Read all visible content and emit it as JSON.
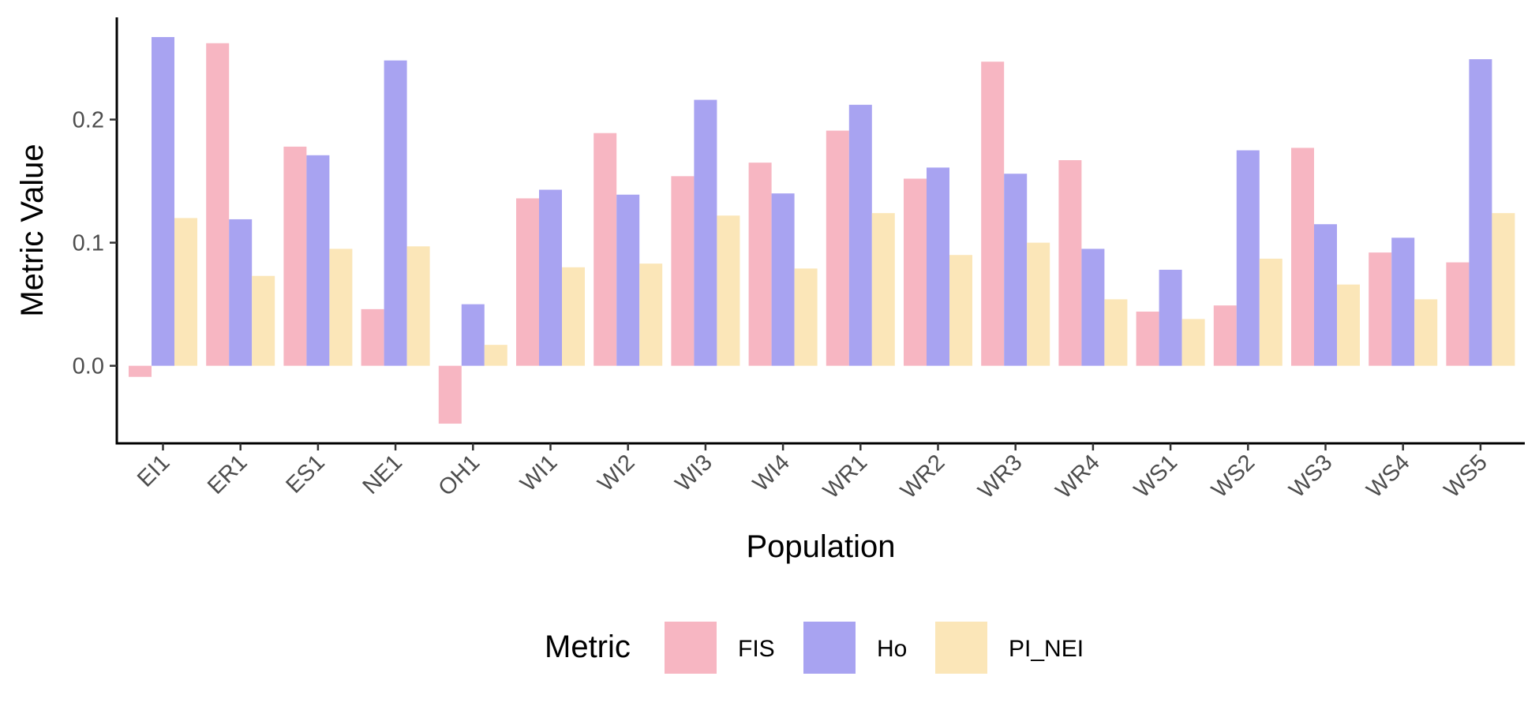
{
  "chart_data": {
    "type": "bar",
    "xlabel": "Population",
    "ylabel": "Metric Value",
    "categories": [
      "EI1",
      "ER1",
      "ES1",
      "NE1",
      "OH1",
      "WI1",
      "WI2",
      "WI3",
      "WI4",
      "WR1",
      "WR2",
      "WR3",
      "WR4",
      "WS1",
      "WS2",
      "WS3",
      "WS4",
      "WS5"
    ],
    "series": [
      {
        "name": "FIS",
        "color": "#f7b6c2",
        "values": [
          -0.009,
          0.262,
          0.178,
          0.046,
          -0.047,
          0.136,
          0.189,
          0.154,
          0.165,
          0.191,
          0.152,
          0.247,
          0.167,
          0.044,
          0.049,
          0.177,
          0.092,
          0.084
        ]
      },
      {
        "name": "Ho",
        "color": "#a8a3f1",
        "values": [
          0.267,
          0.119,
          0.171,
          0.248,
          0.05,
          0.143,
          0.139,
          0.216,
          0.14,
          0.212,
          0.161,
          0.156,
          0.095,
          0.078,
          0.175,
          0.115,
          0.104,
          0.249
        ]
      },
      {
        "name": "PI_NEI",
        "color": "#fbe6b8",
        "values": [
          0.12,
          0.073,
          0.095,
          0.097,
          0.017,
          0.08,
          0.083,
          0.122,
          0.079,
          0.124,
          0.09,
          0.1,
          0.054,
          0.038,
          0.087,
          0.066,
          0.054,
          0.124
        ]
      }
    ],
    "ylim": [
      -0.063,
      0.283
    ],
    "yticks": [
      0.0,
      0.1,
      0.2
    ],
    "ytick_labels": [
      "0.0",
      "0.1",
      "0.2"
    ],
    "legend": {
      "title": "Metric",
      "position": "bottom"
    },
    "grid": false
  }
}
